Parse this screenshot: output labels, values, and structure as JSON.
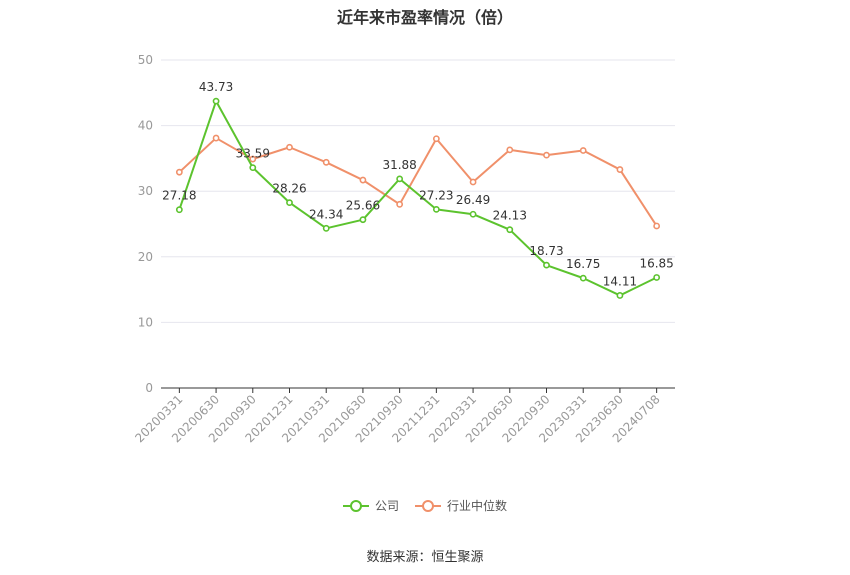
{
  "chart_data": {
    "type": "line",
    "title": "近年来市盈率情况（倍）",
    "categories": [
      "20200331",
      "20200630",
      "20200930",
      "20201231",
      "20210331",
      "20210630",
      "20210930",
      "20211231",
      "20220331",
      "20220630",
      "20220930",
      "20230331",
      "20230630",
      "20240708"
    ],
    "series": [
      {
        "name": "公司",
        "color": "#5cc32e",
        "values": [
          27.18,
          43.73,
          33.59,
          28.26,
          24.34,
          25.66,
          31.88,
          27.23,
          26.49,
          24.13,
          18.73,
          16.75,
          14.11,
          16.85
        ]
      },
      {
        "name": "行业中位数",
        "color": "#f0906a",
        "values": [
          32.9,
          38.1,
          34.9,
          36.7,
          34.4,
          31.7,
          28.0,
          38.0,
          31.4,
          36.3,
          35.5,
          36.2,
          33.3,
          24.7
        ]
      }
    ],
    "yticks": [
      0,
      10,
      20,
      30,
      40,
      50
    ],
    "ylim": [
      0,
      50
    ],
    "grid": true,
    "legend_position": "bottom"
  },
  "source": "数据来源：恒生聚源"
}
